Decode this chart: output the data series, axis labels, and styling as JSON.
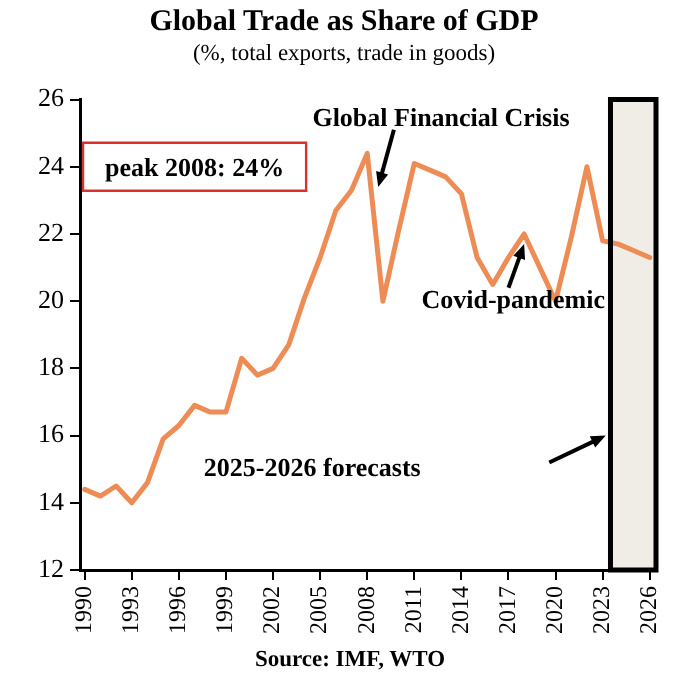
{
  "chart_data": {
    "type": "line",
    "title": "Global Trade as Share of GDP",
    "subtitle": "(%, total exports, trade in goods)",
    "x": [
      1990,
      1991,
      1992,
      1993,
      1994,
      1995,
      1996,
      1997,
      1998,
      1999,
      2000,
      2001,
      2002,
      2003,
      2004,
      2005,
      2006,
      2007,
      2008,
      2009,
      2010,
      2011,
      2012,
      2013,
      2014,
      2015,
      2016,
      2017,
      2018,
      2019,
      2020,
      2021,
      2022,
      2023,
      2024,
      2025,
      2026
    ],
    "series": [
      {
        "color": "#ee8c55",
        "values": [
          14.4,
          14.2,
          14.5,
          14.0,
          14.6,
          15.9,
          16.3,
          16.9,
          16.7,
          16.7,
          18.3,
          17.8,
          18.0,
          18.7,
          20.1,
          21.3,
          22.7,
          23.3,
          24.4,
          20.0,
          22.1,
          24.1,
          23.9,
          23.7,
          23.2,
          21.3,
          20.5,
          21.3,
          22.0,
          21.0,
          20.0,
          21.9,
          24.0,
          21.8,
          21.7,
          21.5,
          21.3
        ]
      }
    ],
    "xlim": [
      1989.7,
      2026.4
    ],
    "xticks": [
      1990,
      1993,
      1996,
      1999,
      2002,
      2005,
      2008,
      2011,
      2014,
      2017,
      2020,
      2023,
      2026
    ],
    "ylim": [
      12,
      26
    ],
    "yticks": [
      12,
      14,
      16,
      18,
      20,
      22,
      24,
      26
    ],
    "bands": [
      {
        "axis": "x",
        "from": 2023.5,
        "to": 2026.4,
        "color": "#efede6"
      }
    ],
    "annotations": [
      "peak 2008: 24%",
      {
        "text": "Global Financial Crisis",
        "x": 2008.7,
        "y": 23.4
      },
      {
        "text": "Covid-pandemic",
        "x": 2018,
        "y": 21.7
      },
      "2025-2026 forecasts",
      "Source: IMF, WTO"
    ],
    "grid": false,
    "legend": false,
    "marker": "none",
    "line_style": "solid"
  }
}
